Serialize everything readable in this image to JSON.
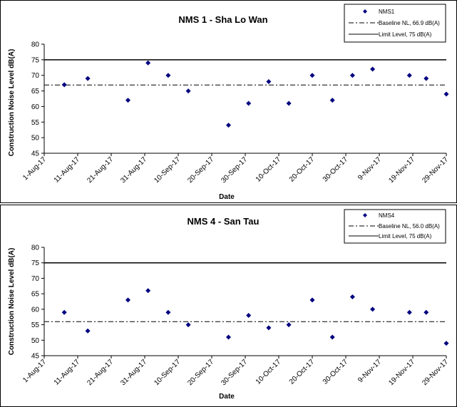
{
  "chart_data": [
    {
      "type": "scatter",
      "title": "NMS 1 - Sha Lo Wan",
      "xlabel": "Date",
      "ylabel": "Construction Noise Level  dB(A)",
      "ylim": [
        45,
        80
      ],
      "yticks": [
        45,
        50,
        55,
        60,
        65,
        70,
        75,
        80
      ],
      "xlim": [
        "1-Aug-17",
        "29-Nov-17"
      ],
      "xticks": [
        "1-Aug-17",
        "11-Aug-17",
        "21-Aug-17",
        "31-Aug-17",
        "10-Sep-17",
        "20-Sep-17",
        "30-Sep-17",
        "10-Oct-17",
        "20-Oct-17",
        "30-Oct-17",
        "9-Nov-17",
        "19-Nov-17",
        "29-Nov-17"
      ],
      "grid": false,
      "legend_position": "top-right",
      "series": [
        {
          "name": "NMS1",
          "color": "#000080",
          "marker": "diamond",
          "points": [
            {
              "x": "2017-08-07",
              "y": 67
            },
            {
              "x": "2017-08-14",
              "y": 69
            },
            {
              "x": "2017-08-26",
              "y": 62
            },
            {
              "x": "2017-09-01",
              "y": 74
            },
            {
              "x": "2017-09-07",
              "y": 70
            },
            {
              "x": "2017-09-13",
              "y": 65
            },
            {
              "x": "2017-09-25",
              "y": 54
            },
            {
              "x": "2017-10-01",
              "y": 61
            },
            {
              "x": "2017-10-07",
              "y": 68
            },
            {
              "x": "2017-10-13",
              "y": 61
            },
            {
              "x": "2017-10-20",
              "y": 70
            },
            {
              "x": "2017-10-26",
              "y": 62
            },
            {
              "x": "2017-11-01",
              "y": 70
            },
            {
              "x": "2017-11-07",
              "y": 72
            },
            {
              "x": "2017-11-18",
              "y": 70
            },
            {
              "x": "2017-11-23",
              "y": 69
            },
            {
              "x": "2017-11-29",
              "y": 64
            }
          ]
        }
      ],
      "reference_lines": [
        {
          "name": "Baseline NL, 66.9 dB(A)",
          "value": 66.9,
          "style": "dash-dot",
          "color": "#000000"
        },
        {
          "name": "Limit Level, 75 dB(A)",
          "value": 75,
          "style": "solid",
          "color": "#000000"
        }
      ]
    },
    {
      "type": "scatter",
      "title": "NMS 4 - San Tau",
      "xlabel": "Date",
      "ylabel": "Construction Noise Level  dB(A)",
      "ylim": [
        45,
        80
      ],
      "yticks": [
        45,
        50,
        55,
        60,
        65,
        70,
        75,
        80
      ],
      "xlim": [
        "1-Aug-17",
        "29-Nov-17"
      ],
      "xticks": [
        "1-Aug-17",
        "11-Aug-17",
        "21-Aug-17",
        "31-Aug-17",
        "10-Sep-17",
        "20-Sep-17",
        "30-Sep-17",
        "10-Oct-17",
        "20-Oct-17",
        "30-Oct-17",
        "9-Nov-17",
        "19-Nov-17",
        "29-Nov-17"
      ],
      "grid": false,
      "legend_position": "top-right",
      "series": [
        {
          "name": "NMS4",
          "color": "#000080",
          "marker": "diamond",
          "points": [
            {
              "x": "2017-08-07",
              "y": 59
            },
            {
              "x": "2017-08-14",
              "y": 53
            },
            {
              "x": "2017-08-26",
              "y": 63
            },
            {
              "x": "2017-09-01",
              "y": 66
            },
            {
              "x": "2017-09-07",
              "y": 59
            },
            {
              "x": "2017-09-13",
              "y": 55
            },
            {
              "x": "2017-09-25",
              "y": 51
            },
            {
              "x": "2017-10-01",
              "y": 58
            },
            {
              "x": "2017-10-07",
              "y": 54
            },
            {
              "x": "2017-10-13",
              "y": 55
            },
            {
              "x": "2017-10-20",
              "y": 63
            },
            {
              "x": "2017-10-26",
              "y": 51
            },
            {
              "x": "2017-11-01",
              "y": 64
            },
            {
              "x": "2017-11-07",
              "y": 60
            },
            {
              "x": "2017-11-18",
              "y": 59
            },
            {
              "x": "2017-11-23",
              "y": 59
            },
            {
              "x": "2017-11-29",
              "y": 49
            }
          ]
        }
      ],
      "reference_lines": [
        {
          "name": "Baseline NL, 56.0 dB(A)",
          "value": 56.0,
          "style": "dash-dot",
          "color": "#000000"
        },
        {
          "name": "Limit Level, 75 dB(A)",
          "value": 75,
          "style": "solid",
          "color": "#000000"
        }
      ]
    }
  ]
}
